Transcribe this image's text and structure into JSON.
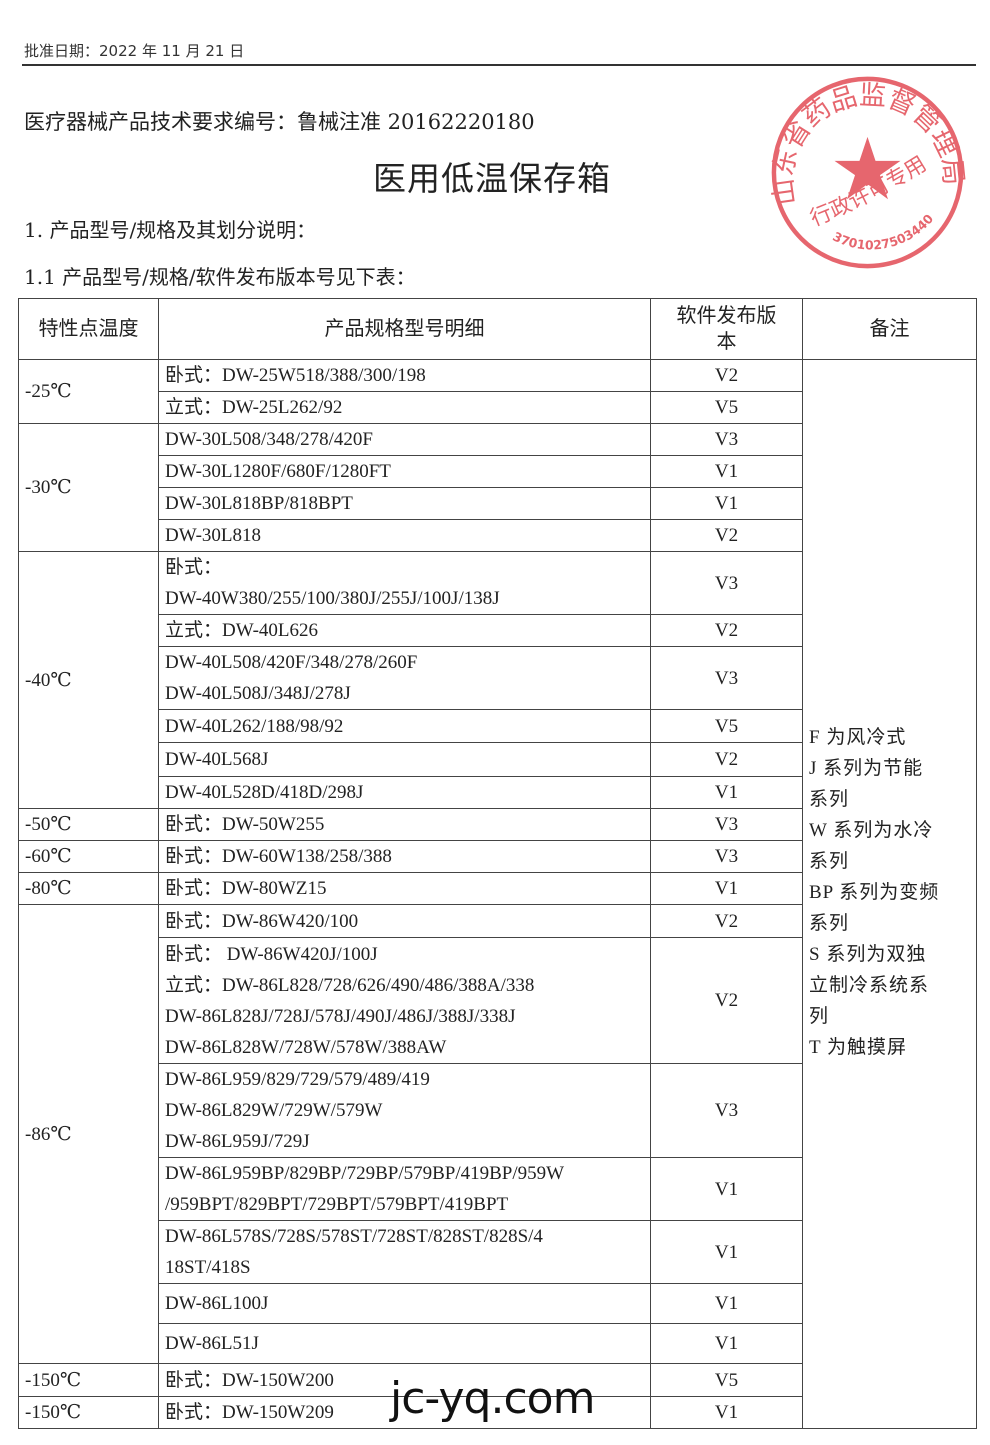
{
  "header": {
    "approval_date": "批准日期：2022 年 11 月 21 日",
    "doc_number": "医疗器械产品技术要求编号：鲁械注准 20162220180",
    "title": "医用低温保存箱",
    "section_1": "1. 产品型号/规格及其划分说明：",
    "section_1_1": "1.1 产品型号/规格/软件发布版本号见下表："
  },
  "table": {
    "headers": [
      "特性点温度",
      "产品规格型号明细",
      "软件发布版本",
      "备注"
    ],
    "groups": [
      {
        "temp": "-25℃",
        "rows": [
          {
            "model": [
              "卧式：DW-25W518/388/300/198"
            ],
            "ver": "V2"
          },
          {
            "model": [
              "立式：DW-25L262/92"
            ],
            "ver": "V5"
          }
        ]
      },
      {
        "temp": "-30℃",
        "rows": [
          {
            "model": [
              "DW-30L508/348/278/420F"
            ],
            "ver": "V3"
          },
          {
            "model": [
              "DW-30L1280F/680F/1280FT"
            ],
            "ver": "V1"
          },
          {
            "model": [
              "DW-30L818BP/818BPT"
            ],
            "ver": "V1"
          },
          {
            "model": [
              "DW-30L818"
            ],
            "ver": "V2"
          }
        ]
      },
      {
        "temp": "-40℃",
        "rows": [
          {
            "model": [
              "卧式：",
              "DW-40W380/255/100/380J/255J/100J/138J"
            ],
            "ver": "V3"
          },
          {
            "model": [
              "立式：DW-40L626"
            ],
            "ver": "V2"
          },
          {
            "model": [
              "DW-40L508/420F/348/278/260F",
              "DW-40L508J/348J/278J"
            ],
            "ver": "V3"
          },
          {
            "model": [
              "DW-40L262/188/98/92"
            ],
            "ver": "V5"
          },
          {
            "model": [
              "DW-40L568J"
            ],
            "ver": "V2"
          },
          {
            "model": [
              "DW-40L528D/418D/298J"
            ],
            "ver": "V1"
          }
        ]
      },
      {
        "temp": "-50℃",
        "rows": [
          {
            "model": [
              "卧式：DW-50W255"
            ],
            "ver": "V3"
          }
        ]
      },
      {
        "temp": "-60℃",
        "rows": [
          {
            "model": [
              "卧式：DW-60W138/258/388"
            ],
            "ver": "V3"
          }
        ]
      },
      {
        "temp": "-80℃",
        "rows": [
          {
            "model": [
              "卧式：DW-80WZ15"
            ],
            "ver": "V1"
          }
        ]
      },
      {
        "temp": "-86℃",
        "rows": [
          {
            "model": [
              "卧式：DW-86W420/100"
            ],
            "ver": "V2"
          },
          {
            "model": [
              "卧式： DW-86W420J/100J",
              "立式：DW-86L828/728/626/490/486/388A/338",
              "DW-86L828J/728J/578J/490J/486J/388J/338J",
              "DW-86L828W/728W/578W/388AW"
            ],
            "ver": "V2"
          },
          {
            "model": [
              "DW-86L959/829/729/579/489/419",
              "DW-86L829W/729W/579W",
              "DW-86L959J/729J"
            ],
            "ver": "V3"
          },
          {
            "model": [
              "DW-86L959BP/829BP/729BP/579BP/419BP/959W",
              "/959BPT/829BPT/729BPT/579BPT/419BPT"
            ],
            "ver": "V1"
          },
          {
            "model": [
              "DW-86L578S/728S/578ST/728ST/828ST/828S/4",
              "18ST/418S"
            ],
            "ver": "V1"
          },
          {
            "model": [
              "DW-86L100J"
            ],
            "ver": "V1"
          },
          {
            "model": [
              "DW-86L51J"
            ],
            "ver": "V1"
          }
        ]
      },
      {
        "temp": "-150℃",
        "rows": [
          {
            "model": [
              "卧式：DW-150W200"
            ],
            "ver": "V5"
          }
        ]
      },
      {
        "temp": "-150℃",
        "rows": [
          {
            "model": [
              "卧式：DW-150W209"
            ],
            "ver": "V1"
          }
        ]
      }
    ],
    "remarks": [
      "F 为风冷式",
      "J 系列为节能",
      "系列",
      "W 系列为水冷",
      "系列",
      "BP 系列为变频",
      "系列",
      "S 系列为双独",
      "立制冷系统系",
      "列",
      "T 为触摸屏"
    ]
  },
  "stamp": {
    "ring_text": "山东省药品监督管理局",
    "inner_text": "行政许可专用章",
    "number": "3701027503440",
    "color": "#e0404a"
  },
  "watermark": "jc-yq.com"
}
